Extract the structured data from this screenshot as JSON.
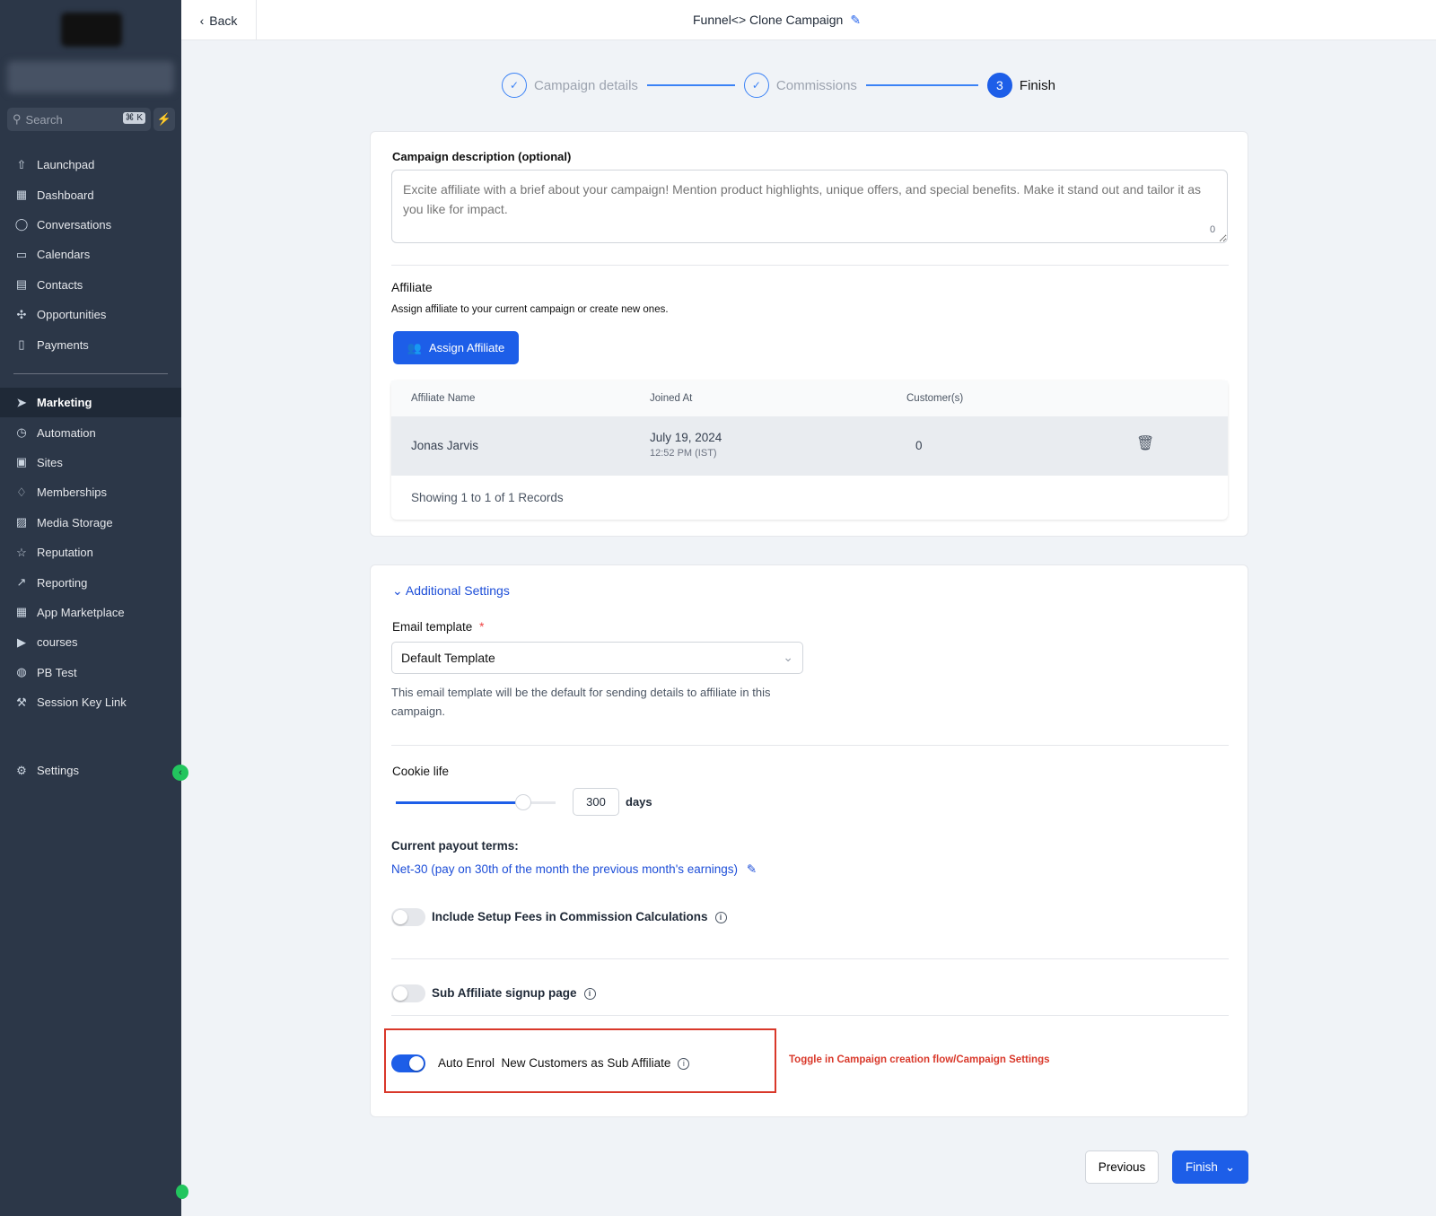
{
  "sidebar": {
    "search_placeholder": "Search",
    "shortcut": "⌘ K",
    "items": [
      {
        "label": "Launchpad",
        "icon": "launchpad-icon"
      },
      {
        "label": "Dashboard",
        "icon": "dashboard-icon"
      },
      {
        "label": "Conversations",
        "icon": "chat-icon"
      },
      {
        "label": "Calendars",
        "icon": "calendar-icon"
      },
      {
        "label": "Contacts",
        "icon": "contacts-icon"
      },
      {
        "label": "Opportunities",
        "icon": "opportunities-icon"
      },
      {
        "label": "Payments",
        "icon": "payments-icon"
      }
    ],
    "items2": [
      {
        "label": "Marketing",
        "icon": "send-icon",
        "active": true
      },
      {
        "label": "Automation",
        "icon": "automation-icon"
      },
      {
        "label": "Sites",
        "icon": "sites-icon"
      },
      {
        "label": "Memberships",
        "icon": "membership-icon"
      },
      {
        "label": "Media Storage",
        "icon": "image-icon"
      },
      {
        "label": "Reputation",
        "icon": "star-icon"
      },
      {
        "label": "Reporting",
        "icon": "trend-icon"
      },
      {
        "label": "App Marketplace",
        "icon": "grid-icon"
      },
      {
        "label": "courses",
        "icon": "video-icon"
      },
      {
        "label": "PB Test",
        "icon": "globe-icon"
      },
      {
        "label": "Session Key Link",
        "icon": "wrench-icon"
      }
    ],
    "settings": "Settings"
  },
  "header": {
    "back": "Back",
    "title": "Funnel<> Clone Campaign"
  },
  "stepper": [
    {
      "label": "Campaign details",
      "state": "done"
    },
    {
      "label": "Commissions",
      "state": "done"
    },
    {
      "label": "Finish",
      "num": "3",
      "state": "current"
    }
  ],
  "description": {
    "label": "Campaign description (optional)",
    "placeholder": "Excite affiliate with a brief about your campaign! Mention product highlights, unique offers, and special benefits. Make it stand out and tailor it as you like for impact.",
    "count": "0"
  },
  "affiliate": {
    "title": "Affiliate",
    "subtitle": "Assign affiliate to your current campaign or create new ones.",
    "button": "Assign Affiliate",
    "columns": [
      "Affiliate Name",
      "Joined At",
      "Customer(s)"
    ],
    "rows": [
      {
        "name": "Jonas Jarvis",
        "date": "July 19, 2024",
        "time": "12:52 PM (IST)",
        "customers": "0"
      }
    ],
    "footer": "Showing 1 to 1 of 1 Records"
  },
  "settings": {
    "section": "Additional Settings",
    "email_label": "Email template",
    "required": "*",
    "email_value": "Default Template",
    "email_help": "This email template will be the default for sending details to affiliate in this campaign.",
    "cookie_label": "Cookie life",
    "cookie_value": "300",
    "cookie_unit": "days",
    "cookie_fraction": 0.8,
    "payout_label": "Current payout terms:",
    "payout_value": "Net-30 (pay on 30th of the month the previous month's earnings)",
    "setup_fees": {
      "label": "Include Setup Fees in Commission Calculations",
      "on": false
    },
    "sub_signup": {
      "label": "Sub Affiliate signup page",
      "on": false
    },
    "auto_enrol": {
      "label": "Auto Enrol  New Customers as Sub Affiliate",
      "on": true
    },
    "annotation": "Toggle in Campaign creation flow/Campaign Settings"
  },
  "footer": {
    "previous": "Previous",
    "finish": "Finish"
  },
  "colors": {
    "primary": "#1d5ee8",
    "sidebar": "#2c3748",
    "annotation": "#d9382a"
  }
}
